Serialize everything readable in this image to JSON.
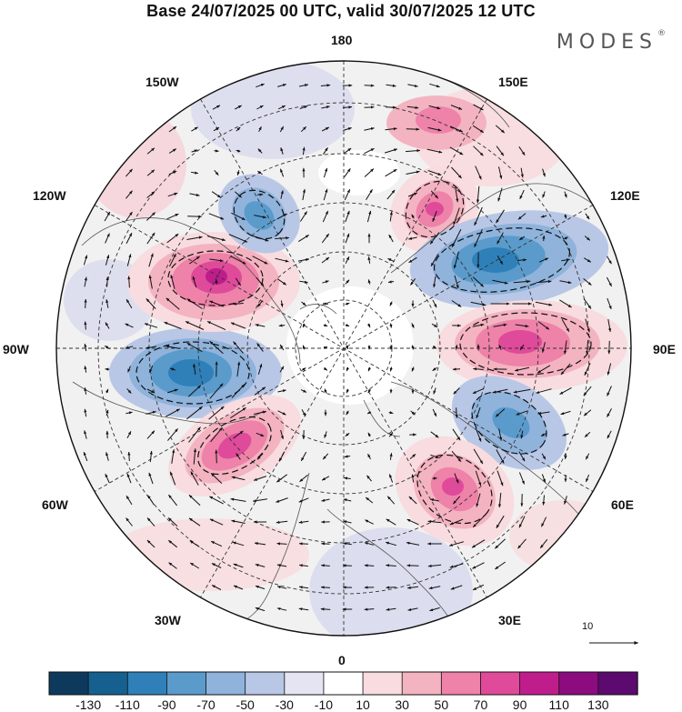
{
  "title": "Base 24/07/2025 00 UTC, valid 30/07/2025 12 UTC",
  "brand": "MODES",
  "brand_mark": "®",
  "longitude_labels": {
    "n180": "180",
    "e150": "150E",
    "e120": "120E",
    "e90": "90E",
    "e60": "60E",
    "e30": "30E",
    "zero": "0",
    "w30": "30W",
    "w60": "60W",
    "w90": "90W",
    "w120": "120W",
    "w150": "150W"
  },
  "reference_vector": {
    "label": "10"
  },
  "colorbar": {
    "labels": [
      "-130",
      "-110",
      "-90",
      "-70",
      "-50",
      "-30",
      "-10",
      "10",
      "30",
      "50",
      "70",
      "90",
      "110",
      "130"
    ],
    "colors": [
      "#0d3a5c",
      "#15608f",
      "#2f80b9",
      "#5a9bcc",
      "#8fb3db",
      "#b9c7e6",
      "#e4e4f2",
      "#ffffff",
      "#f8dcdf",
      "#f4b3c1",
      "#ee82a8",
      "#df4a9a",
      "#bf1d8c",
      "#8c0b7f",
      "#5c0a6f"
    ]
  },
  "anomaly_centers": [
    {
      "name": "blue-low-90w",
      "value": -110,
      "lon": -90,
      "lat": 45
    },
    {
      "name": "red-high-110w",
      "value": 100,
      "lon": -110,
      "lat": 58
    },
    {
      "name": "red-high-60w",
      "value": 100,
      "lon": -58,
      "lat": 48
    },
    {
      "name": "blue-low-140w",
      "value": -80,
      "lon": -140,
      "lat": 60
    },
    {
      "name": "red-high-145e",
      "value": 90,
      "lon": 150,
      "lat": 62
    },
    {
      "name": "blue-low-110e",
      "value": -100,
      "lon": 110,
      "lat": 55
    },
    {
      "name": "red-high-85e",
      "value": 90,
      "lon": 85,
      "lat": 48
    },
    {
      "name": "blue-low-65e",
      "value": -70,
      "lon": 62,
      "lat": 48
    },
    {
      "name": "red-high-40e",
      "value": 80,
      "lon": 38,
      "lat": 52
    }
  ]
}
